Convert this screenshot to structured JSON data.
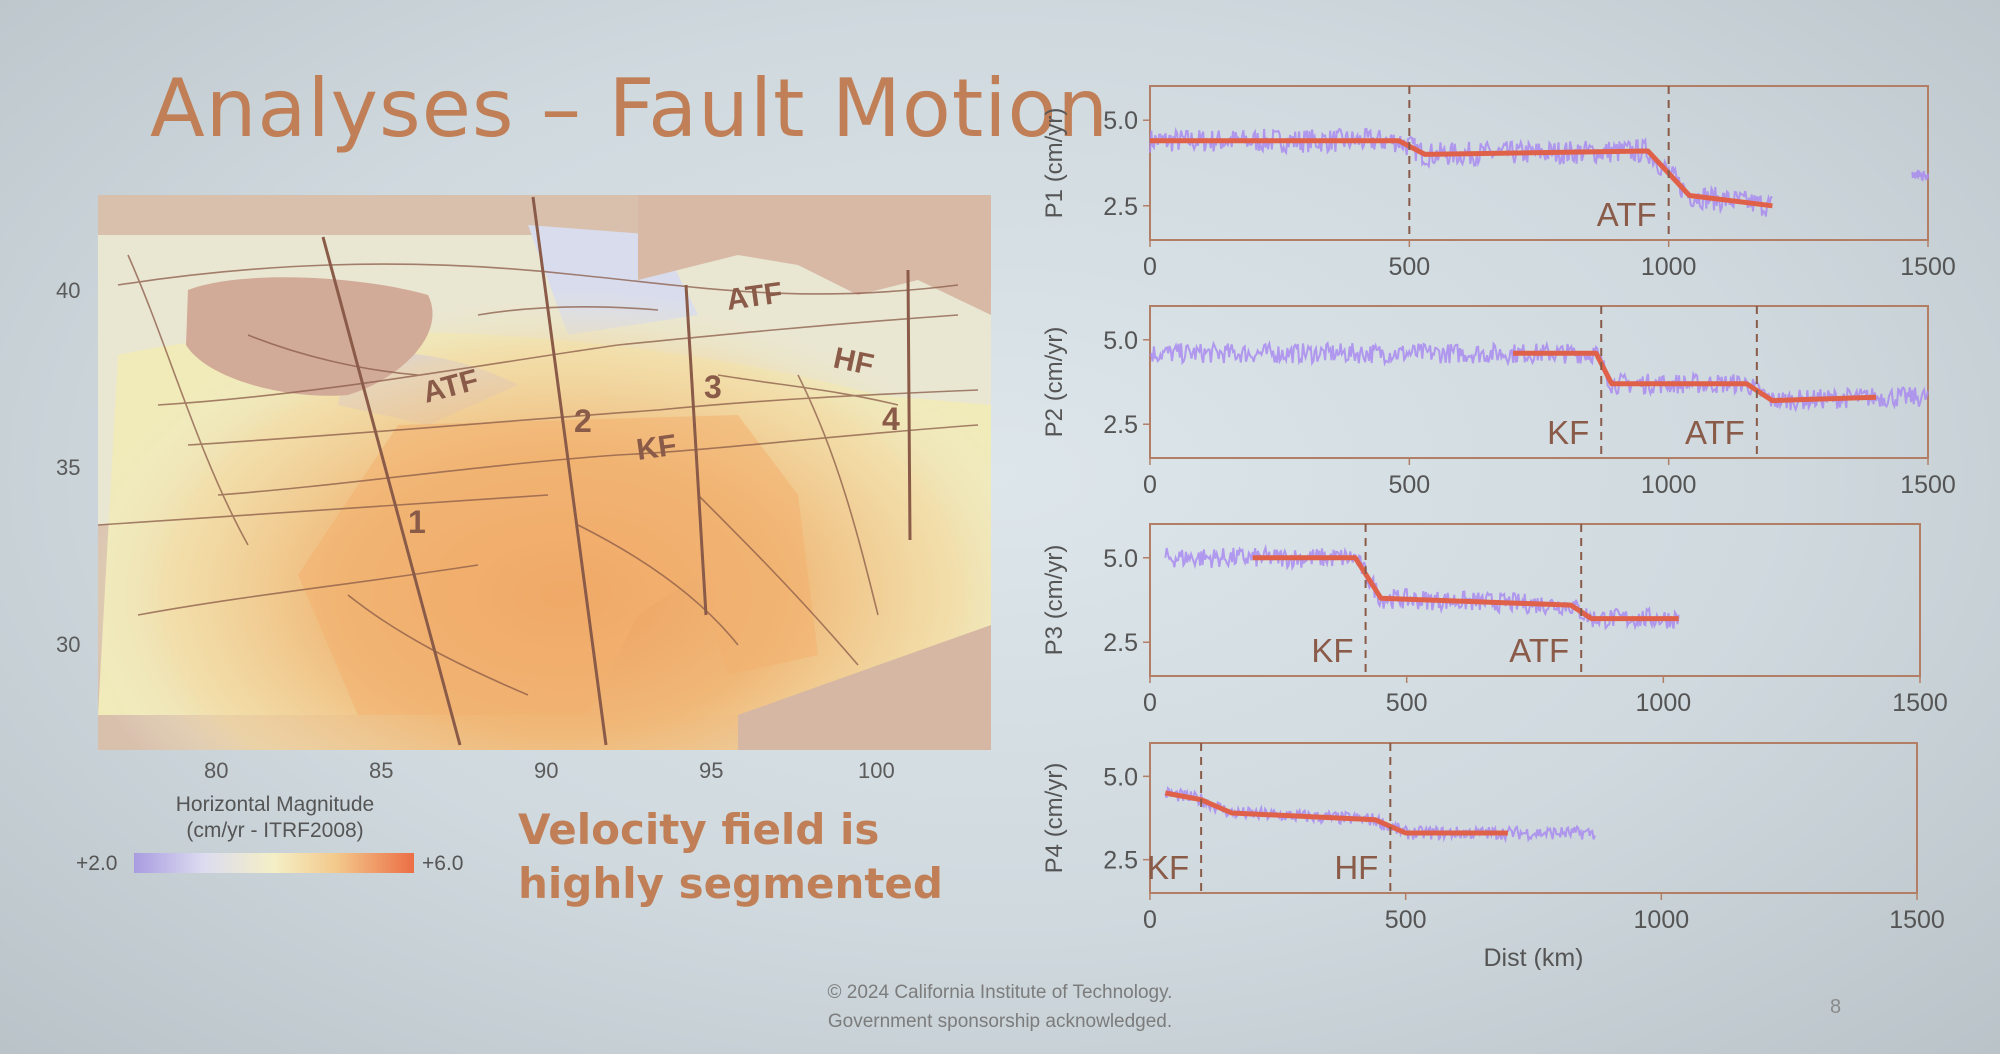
{
  "slide": {
    "title": "Analyses – Fault Motion",
    "subtitle": "Velocity field is highly segmented",
    "footer_line1": "© 2024 California Institute of Technology.",
    "footer_line2": "Government sponsorship acknowledged.",
    "page_number": "8"
  },
  "map": {
    "lat_ticks": [
      "40",
      "35",
      "30"
    ],
    "lon_ticks": [
      "80",
      "85",
      "90",
      "95",
      "100"
    ],
    "fault_labels": [
      "ATF",
      "ATF",
      "HF",
      "KF"
    ],
    "profile_labels": [
      "1",
      "2",
      "3",
      "4"
    ],
    "colorbar": {
      "title_line1": "Horizontal Magnitude",
      "title_line2": "(cm/yr - ITRF2008)",
      "min_label": "+2.0",
      "max_label": "+6.0",
      "colors": [
        "#a99ce0",
        "#f4efc6",
        "#ec6e45"
      ]
    }
  },
  "chart_data": [
    {
      "type": "scatter",
      "ylabel": "P1 (cm/yr)",
      "xlabel": "",
      "x_ticks": [
        "0",
        "500",
        "1000",
        "1500"
      ],
      "y_ticks": [
        "5.0",
        "2.5"
      ],
      "xlim": [
        0,
        1500
      ],
      "ylim": [
        1.5,
        6.0
      ],
      "faults": [
        {
          "x": 500,
          "label": ""
        },
        {
          "x": 1000,
          "label": "ATF"
        }
      ],
      "fit": [
        [
          0,
          4.4
        ],
        [
          480,
          4.4
        ],
        [
          530,
          4.0
        ],
        [
          960,
          4.1
        ],
        [
          1040,
          2.8
        ],
        [
          1200,
          2.5
        ]
      ],
      "scatter_segments": [
        [
          0,
          1200,
          0.35
        ],
        [
          1470,
          1500,
          0.15
        ]
      ]
    },
    {
      "type": "scatter",
      "ylabel": "P2 (cm/yr)",
      "xlabel": "",
      "x_ticks": [
        "0",
        "500",
        "1000",
        "1500"
      ],
      "y_ticks": [
        "5.0",
        "2.5"
      ],
      "xlim": [
        0,
        1500
      ],
      "ylim": [
        1.5,
        6.0
      ],
      "faults": [
        {
          "x": 870,
          "label": "KF"
        },
        {
          "x": 1170,
          "label": "ATF"
        }
      ],
      "fit": [
        [
          700,
          4.6
        ],
        [
          860,
          4.6
        ],
        [
          890,
          3.7
        ],
        [
          1150,
          3.7
        ],
        [
          1200,
          3.2
        ],
        [
          1400,
          3.3
        ]
      ],
      "scatter_segments": [
        [
          0,
          1500,
          0.3
        ]
      ]
    },
    {
      "type": "scatter",
      "ylabel": "P3 (cm/yr)",
      "xlabel": "",
      "x_ticks": [
        "0",
        "500",
        "1000",
        "1500"
      ],
      "y_ticks": [
        "5.0",
        "2.5"
      ],
      "xlim": [
        0,
        1500
      ],
      "ylim": [
        1.5,
        6.0
      ],
      "faults": [
        {
          "x": 420,
          "label": "KF"
        },
        {
          "x": 840,
          "label": "ATF"
        }
      ],
      "fit": [
        [
          200,
          5.0
        ],
        [
          400,
          5.0
        ],
        [
          450,
          3.8
        ],
        [
          820,
          3.6
        ],
        [
          860,
          3.2
        ],
        [
          1030,
          3.2
        ]
      ],
      "scatter_segments": [
        [
          30,
          1030,
          0.3
        ]
      ]
    },
    {
      "type": "scatter",
      "ylabel": "P4 (cm/yr)",
      "xlabel": "Dist (km)",
      "x_ticks": [
        "0",
        "500",
        "1000",
        "1500"
      ],
      "y_ticks": [
        "5.0",
        "2.5"
      ],
      "xlim": [
        0,
        1500
      ],
      "ylim": [
        1.5,
        6.0
      ],
      "faults": [
        {
          "x": 100,
          "label": "KF"
        },
        {
          "x": 470,
          "label": "HF"
        }
      ],
      "fit": [
        [
          30,
          4.5
        ],
        [
          100,
          4.3
        ],
        [
          160,
          3.9
        ],
        [
          440,
          3.7
        ],
        [
          500,
          3.3
        ],
        [
          700,
          3.3
        ]
      ],
      "scatter_segments": [
        [
          30,
          870,
          0.2
        ]
      ]
    }
  ]
}
